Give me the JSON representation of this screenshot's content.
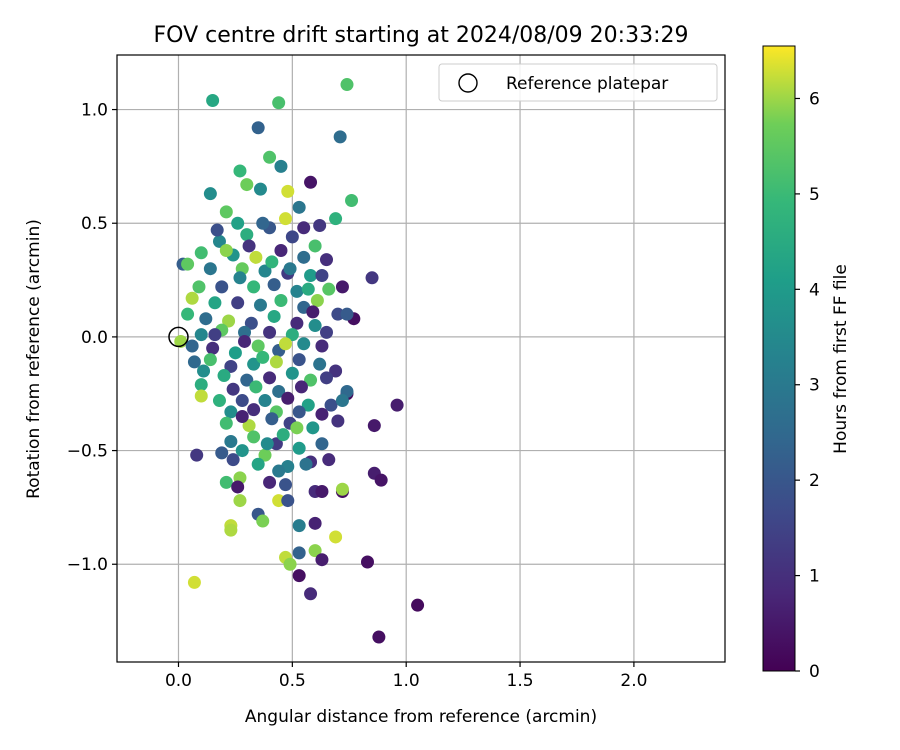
{
  "chart_data": {
    "type": "scatter",
    "title": "FOV centre drift starting at 2024/08/09 20:33:29",
    "xlabel": "Angular distance from reference (arcmin)",
    "ylabel": "Rotation from reference (arcmin)",
    "xlim": [
      -0.27,
      2.4
    ],
    "ylim": [
      -1.43,
      1.24
    ],
    "x_ticks": [
      0.0,
      0.5,
      1.0,
      1.5,
      2.0
    ],
    "x_tick_labels": [
      "0.0",
      "0.5",
      "1.0",
      "1.5",
      "2.0"
    ],
    "y_ticks": [
      1.0,
      0.5,
      0.0,
      -0.5,
      -1.0
    ],
    "y_tick_labels": [
      "1.0",
      "0.5",
      "0.0",
      "−0.5",
      "−1.0"
    ],
    "grid": true,
    "legend": {
      "position": "top-right",
      "entries": [
        "Reference platepar"
      ]
    },
    "reference_point": {
      "x": 0.0,
      "y": 0.0
    },
    "colorbar": {
      "label": "Hours from first FF file",
      "range": [
        0,
        6.55
      ],
      "ticks": [
        0,
        1,
        2,
        3,
        4,
        5,
        6
      ],
      "tick_labels": [
        "0",
        "1",
        "2",
        "3",
        "4",
        "5",
        "6"
      ],
      "colormap": "viridis"
    },
    "points": [
      [
        0.74,
        1.11,
        5.3
      ],
      [
        0.15,
        1.04,
        4.4
      ],
      [
        0.44,
        1.03,
        5.2
      ],
      [
        0.35,
        0.92,
        2.3
      ],
      [
        0.71,
        0.88,
        2.6
      ],
      [
        0.4,
        0.79,
        5.3
      ],
      [
        0.45,
        0.75,
        3.2
      ],
      [
        0.58,
        0.68,
        0.4
      ],
      [
        0.27,
        0.73,
        4.9
      ],
      [
        0.3,
        0.67,
        5.7
      ],
      [
        0.76,
        0.6,
        5.1
      ],
      [
        0.14,
        0.63,
        3.6
      ],
      [
        0.21,
        0.55,
        5.5
      ],
      [
        0.36,
        0.65,
        3.5
      ],
      [
        0.48,
        0.64,
        6.3
      ],
      [
        0.53,
        0.57,
        2.9
      ],
      [
        0.69,
        0.52,
        4.7
      ],
      [
        0.26,
        0.5,
        4.2
      ],
      [
        0.4,
        0.48,
        2.0
      ],
      [
        0.62,
        0.49,
        1.2
      ],
      [
        0.18,
        0.42,
        3.4
      ],
      [
        0.3,
        0.45,
        4.6
      ],
      [
        0.5,
        0.44,
        1.6
      ],
      [
        0.6,
        0.4,
        5.2
      ],
      [
        0.1,
        0.37,
        5.1
      ],
      [
        0.24,
        0.36,
        3.8
      ],
      [
        0.34,
        0.35,
        6.2
      ],
      [
        0.45,
        0.38,
        0.8
      ],
      [
        0.55,
        0.35,
        2.6
      ],
      [
        0.65,
        0.34,
        1.0
      ],
      [
        0.02,
        0.32,
        2.2
      ],
      [
        0.04,
        0.32,
        5.5
      ],
      [
        0.14,
        0.3,
        2.9
      ],
      [
        0.28,
        0.3,
        5.6
      ],
      [
        0.38,
        0.29,
        3.4
      ],
      [
        0.48,
        0.28,
        1.3
      ],
      [
        0.58,
        0.27,
        4.0
      ],
      [
        0.63,
        0.27,
        1.5
      ],
      [
        0.85,
        0.26,
        1.2
      ],
      [
        0.09,
        0.22,
        5.3
      ],
      [
        0.19,
        0.22,
        1.9
      ],
      [
        0.33,
        0.22,
        4.9
      ],
      [
        0.42,
        0.23,
        2.2
      ],
      [
        0.52,
        0.2,
        3.3
      ],
      [
        0.72,
        0.22,
        0.5
      ],
      [
        0.66,
        0.21,
        5.4
      ],
      [
        0.06,
        0.17,
        6.1
      ],
      [
        0.16,
        0.15,
        4.3
      ],
      [
        0.26,
        0.15,
        1.4
      ],
      [
        0.36,
        0.14,
        3.0
      ],
      [
        0.45,
        0.16,
        5.0
      ],
      [
        0.55,
        0.13,
        2.4
      ],
      [
        0.61,
        0.16,
        5.9
      ],
      [
        0.7,
        0.1,
        1.7
      ],
      [
        0.04,
        0.1,
        4.9
      ],
      [
        0.12,
        0.08,
        2.6
      ],
      [
        0.22,
        0.07,
        6.0
      ],
      [
        0.32,
        0.06,
        1.8
      ],
      [
        0.42,
        0.09,
        4.4
      ],
      [
        0.52,
        0.06,
        0.9
      ],
      [
        0.6,
        0.05,
        3.6
      ],
      [
        0.77,
        0.08,
        0.3
      ],
      [
        0.74,
        0.1,
        2.1
      ],
      [
        0.1,
        0.01,
        3.4
      ],
      [
        0.19,
        0.03,
        5.5
      ],
      [
        0.29,
        0.02,
        2.7
      ],
      [
        0.4,
        0.02,
        1.1
      ],
      [
        0.5,
        0.01,
        4.6
      ],
      [
        0.65,
        0.02,
        1.4
      ],
      [
        0.01,
        -0.02,
        6.0
      ],
      [
        0.06,
        -0.04,
        2.4
      ],
      [
        0.15,
        -0.05,
        1.0
      ],
      [
        0.25,
        -0.07,
        4.1
      ],
      [
        0.35,
        -0.04,
        5.5
      ],
      [
        0.44,
        -0.06,
        2.2
      ],
      [
        0.55,
        -0.03,
        3.5
      ],
      [
        0.63,
        -0.04,
        0.9
      ],
      [
        0.14,
        -0.1,
        5.2
      ],
      [
        0.23,
        -0.13,
        1.5
      ],
      [
        0.33,
        -0.12,
        3.8
      ],
      [
        0.43,
        -0.11,
        6.1
      ],
      [
        0.53,
        -0.1,
        1.9
      ],
      [
        0.62,
        -0.12,
        2.8
      ],
      [
        0.07,
        -0.11,
        2.5
      ],
      [
        0.2,
        -0.17,
        4.5
      ],
      [
        0.3,
        -0.19,
        2.4
      ],
      [
        0.4,
        -0.18,
        0.9
      ],
      [
        0.5,
        -0.16,
        3.8
      ],
      [
        0.58,
        -0.19,
        5.3
      ],
      [
        0.69,
        -0.15,
        1.1
      ],
      [
        0.1,
        -0.21,
        4.6
      ],
      [
        0.24,
        -0.23,
        1.2
      ],
      [
        0.34,
        -0.22,
        5.0
      ],
      [
        0.44,
        -0.24,
        2.7
      ],
      [
        0.54,
        -0.22,
        0.8
      ],
      [
        0.65,
        -0.18,
        1.4
      ],
      [
        0.74,
        -0.25,
        0.2
      ],
      [
        0.74,
        -0.24,
        2.5
      ],
      [
        0.1,
        -0.26,
        6.2
      ],
      [
        0.18,
        -0.28,
        4.7
      ],
      [
        0.28,
        -0.28,
        1.7
      ],
      [
        0.38,
        -0.28,
        3.3
      ],
      [
        0.48,
        -0.27,
        0.6
      ],
      [
        0.57,
        -0.3,
        4.2
      ],
      [
        0.67,
        -0.3,
        1.8
      ],
      [
        0.96,
        -0.3,
        0.6
      ],
      [
        0.23,
        -0.33,
        3.6
      ],
      [
        0.33,
        -0.32,
        1.0
      ],
      [
        0.43,
        -0.33,
        5.4
      ],
      [
        0.53,
        -0.33,
        2.0
      ],
      [
        0.63,
        -0.34,
        0.7
      ],
      [
        0.72,
        -0.28,
        2.9
      ],
      [
        0.21,
        -0.38,
        5.1
      ],
      [
        0.31,
        -0.39,
        6.1
      ],
      [
        0.41,
        -0.36,
        2.2
      ],
      [
        0.49,
        -0.38,
        1.5
      ],
      [
        0.59,
        -0.4,
        3.9
      ],
      [
        0.7,
        -0.37,
        1.1
      ],
      [
        0.86,
        -0.39,
        0.5
      ],
      [
        0.23,
        -0.46,
        3.0
      ],
      [
        0.33,
        -0.44,
        5.3
      ],
      [
        0.43,
        -0.47,
        1.3
      ],
      [
        0.53,
        -0.49,
        4.0
      ],
      [
        0.63,
        -0.47,
        2.4
      ],
      [
        0.08,
        -0.52,
        1.2
      ],
      [
        0.19,
        -0.51,
        2.1
      ],
      [
        0.28,
        -0.5,
        3.8
      ],
      [
        0.38,
        -0.52,
        5.7
      ],
      [
        0.48,
        -0.57,
        3.2
      ],
      [
        0.58,
        -0.55,
        1.0
      ],
      [
        0.66,
        -0.54,
        0.9
      ],
      [
        0.24,
        -0.54,
        1.7
      ],
      [
        0.35,
        -0.56,
        4.3
      ],
      [
        0.44,
        -0.59,
        3.0
      ],
      [
        0.56,
        -0.56,
        2.8
      ],
      [
        0.86,
        -0.6,
        0.6
      ],
      [
        0.27,
        -0.62,
        5.9
      ],
      [
        0.4,
        -0.64,
        0.8
      ],
      [
        0.21,
        -0.64,
        5.1
      ],
      [
        0.26,
        -0.66,
        0.5
      ],
      [
        0.47,
        -0.65,
        1.9
      ],
      [
        0.6,
        -0.68,
        0.9
      ],
      [
        0.63,
        -0.68,
        0.5
      ],
      [
        0.72,
        -0.68,
        0.3
      ],
      [
        0.89,
        -0.63,
        0.4
      ],
      [
        0.27,
        -0.72,
        6.0
      ],
      [
        0.44,
        -0.72,
        6.3
      ],
      [
        0.48,
        -0.72,
        1.9
      ],
      [
        0.72,
        -0.67,
        6.0
      ],
      [
        0.35,
        -0.78,
        2.0
      ],
      [
        0.37,
        -0.81,
        5.8
      ],
      [
        0.53,
        -0.83,
        3.1
      ],
      [
        0.6,
        -0.82,
        0.7
      ],
      [
        0.23,
        -0.83,
        6.2
      ],
      [
        0.23,
        -0.85,
        6.1
      ],
      [
        0.69,
        -0.88,
        6.3
      ],
      [
        0.47,
        -0.97,
        6.2
      ],
      [
        0.49,
        -1.0,
        5.9
      ],
      [
        0.53,
        -0.95,
        2.3
      ],
      [
        0.6,
        -0.94,
        5.9
      ],
      [
        0.63,
        -0.98,
        0.6
      ],
      [
        0.83,
        -0.99,
        0.3
      ],
      [
        0.53,
        -1.05,
        0.3
      ],
      [
        0.58,
        -1.13,
        0.9
      ],
      [
        0.07,
        -1.08,
        6.3
      ],
      [
        1.05,
        -1.18,
        0.2
      ],
      [
        0.88,
        -1.32,
        0.3
      ],
      [
        0.17,
        0.47,
        1.8
      ],
      [
        0.21,
        0.38,
        5.9
      ],
      [
        0.27,
        0.26,
        3.3
      ],
      [
        0.31,
        0.4,
        1.1
      ],
      [
        0.37,
        0.5,
        2.4
      ],
      [
        0.41,
        0.33,
        4.8
      ],
      [
        0.47,
        0.52,
        6.3
      ],
      [
        0.49,
        0.3,
        3.0
      ],
      [
        0.55,
        0.48,
        0.9
      ],
      [
        0.57,
        0.21,
        4.5
      ],
      [
        0.29,
        -0.02,
        0.8
      ],
      [
        0.37,
        -0.09,
        4.9
      ],
      [
        0.47,
        -0.03,
        6.2
      ],
      [
        0.11,
        -0.15,
        3.6
      ],
      [
        0.28,
        -0.35,
        0.7
      ],
      [
        0.46,
        -0.43,
        4.6
      ],
      [
        0.16,
        0.01,
        1.4
      ],
      [
        0.59,
        0.11,
        0.6
      ],
      [
        0.39,
        -0.47,
        3.5
      ],
      [
        0.52,
        -0.4,
        5.8
      ]
    ]
  }
}
